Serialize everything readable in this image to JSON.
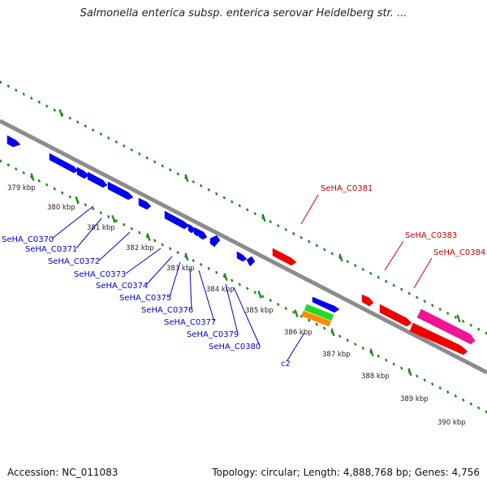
{
  "title": "Salmonella enterica subsp. enterica serovar Heidelberg str. ...",
  "footer": {
    "accession": "Accession: NC_011083",
    "summary": "Topology: circular; Length: 4,888,768 bp; Genes: 4,756"
  },
  "colors": {
    "backbone": "#8c8c8c",
    "ticks": "#228b22",
    "gene_forward": "#ee0000",
    "gene_reverse": "#0000ee",
    "gene_pink": "#ee1493",
    "gene_green": "#22dd22",
    "gene_orange": "#ff8c00",
    "label_red": "#cc0000",
    "label_blue": "#0000cc"
  },
  "scale_labels": [
    "379 kbp",
    "380 kbp",
    "381 kbp",
    "382 kbp",
    "383 kbp",
    "384 kbp",
    "385 kbp",
    "386 kbp",
    "387 kbp",
    "388 kbp",
    "389 kbp",
    "390 kbp"
  ],
  "gene_labels_blue": [
    "SeHA_C0370",
    "SeHA_C0371",
    "SeHA_C0372",
    "SeHA_C0373",
    "SeHA_C0374",
    "SeHA_C0375",
    "SeHA_C0376",
    "SeHA_C0377",
    "SeHA_C0379",
    "SeHA_C0380",
    "c2"
  ],
  "gene_labels_red": [
    "SeHA_C0381",
    "SeHA_C0383",
    "SeHA_C0384"
  ]
}
